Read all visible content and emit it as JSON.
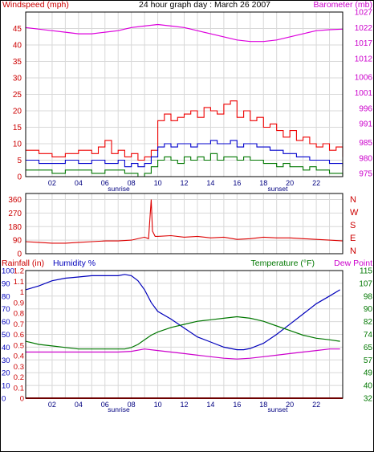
{
  "chart_data": [
    {
      "type": "line",
      "title": "24 hour graph day : March 26 2007",
      "left_axis_label": "Windspeed (mph)",
      "right_axis_label": "Barometer (mb)",
      "y_left_ticks": [
        "0",
        "5",
        "10",
        "15",
        "20",
        "25",
        "30",
        "35",
        "40",
        "45"
      ],
      "y_left_range": [
        0,
        50
      ],
      "y_right_ticks": [
        "975",
        "980",
        "985",
        "991",
        "996",
        "1001",
        "1006",
        "1012",
        "1017",
        "1022",
        "1027"
      ],
      "y_right_range": [
        974,
        1027
      ],
      "x_ticks": [
        "02",
        "04",
        "06",
        "08",
        "10",
        "12",
        "14",
        "16",
        "18",
        "20",
        "22"
      ],
      "x_range": [
        0,
        24
      ],
      "grid": true,
      "annotations": {
        "sunrise": "sunrise",
        "sunset": "sunset",
        "sunrise_hour": 7,
        "sunset_hour": 19
      },
      "colors": {
        "gust": "#ee0000",
        "avg": "#0000cc",
        "min": "#007700",
        "baro": "#dd00dd",
        "left_axis": "#cc0000",
        "right_axis": "#cc00cc"
      },
      "series": [
        {
          "name": "",
          "color": "#ee0000",
          "x": [
            0,
            1,
            2,
            3,
            4,
            5,
            5.5,
            6,
            6.5,
            7,
            7.5,
            8,
            8.5,
            9,
            9.5,
            10,
            10.5,
            11,
            11.5,
            12,
            12.5,
            13,
            13.5,
            14,
            14.5,
            15,
            15.5,
            16,
            16.5,
            17,
            17.5,
            18,
            18.5,
            19,
            19.5,
            20,
            20.5,
            21,
            21.5,
            22,
            22.5,
            23,
            23.5,
            24
          ],
          "y": [
            8,
            7,
            6,
            7,
            8,
            7,
            9,
            11,
            7,
            8,
            6,
            7,
            5,
            6,
            8,
            17,
            19,
            17,
            18,
            19,
            20,
            18,
            21,
            20,
            19,
            22,
            23,
            18,
            20,
            17,
            18,
            15,
            16,
            14,
            12,
            14,
            11,
            12,
            10,
            9,
            10,
            8,
            9,
            6
          ]
        },
        {
          "name": "",
          "color": "#0000cc",
          "x": [
            0,
            1,
            2,
            3,
            4,
            5,
            6,
            7,
            7.5,
            8,
            8.5,
            9,
            9.5,
            10,
            10.5,
            11,
            11.5,
            12,
            12.5,
            13,
            13.5,
            14,
            14.5,
            15,
            15.5,
            16,
            16.5,
            17,
            17.5,
            18,
            18.5,
            19,
            19.5,
            20,
            20.5,
            21,
            21.5,
            22,
            22.5,
            23,
            23.5,
            24
          ],
          "y": [
            5,
            4,
            4,
            5,
            4,
            5,
            4,
            5,
            3,
            4,
            3,
            4,
            6,
            9,
            10,
            9,
            10,
            10,
            9,
            10,
            10,
            11,
            10,
            10,
            11,
            9,
            10,
            10,
            9,
            9,
            8,
            8,
            7,
            7,
            6,
            6,
            5,
            5,
            5,
            4,
            4,
            3
          ]
        },
        {
          "name": "",
          "color": "#007700",
          "x": [
            0,
            1,
            2,
            3,
            4,
            5,
            6,
            7,
            7.5,
            8,
            8.5,
            9,
            9.5,
            10,
            10.5,
            11,
            11.5,
            12,
            12.5,
            13,
            13.5,
            14,
            14.5,
            15,
            15.5,
            16,
            16.5,
            17,
            17.5,
            18,
            18.5,
            19,
            19.5,
            20,
            20.5,
            21,
            21.5,
            22,
            22.5,
            23,
            23.5,
            24
          ],
          "y": [
            2,
            2,
            1,
            2,
            2,
            1,
            2,
            2,
            1,
            1,
            0,
            1,
            3,
            5,
            6,
            5,
            4,
            6,
            5,
            6,
            5,
            7,
            5,
            6,
            6,
            5,
            6,
            5,
            5,
            4,
            4,
            3,
            4,
            3,
            3,
            2,
            3,
            2,
            2,
            1,
            1,
            0
          ]
        },
        {
          "name": "",
          "color": "#dd00dd",
          "x": [
            0,
            1,
            2,
            3,
            4,
            5,
            6,
            7,
            8,
            9,
            10,
            11,
            12,
            13,
            14,
            15,
            16,
            17,
            18,
            19,
            20,
            21,
            22,
            23,
            24
          ],
          "y": [
            1022,
            1021.5,
            1021,
            1020.5,
            1020,
            1020,
            1020.5,
            1021,
            1022,
            1022.5,
            1023,
            1022.5,
            1022,
            1021,
            1020,
            1019,
            1018,
            1017.5,
            1017.5,
            1018,
            1019,
            1020,
            1021,
            1021.3,
            1021.5
          ]
        }
      ]
    },
    {
      "type": "line",
      "y_left_ticks": [
        "360",
        "270",
        "180",
        "90",
        "0"
      ],
      "y_left_range": [
        0,
        400
      ],
      "right_labels": [
        "N",
        "W",
        "S",
        "E",
        "N"
      ],
      "x_range": [
        0,
        24
      ],
      "grid": true,
      "colors": {
        "dir": "#dd0000"
      },
      "series": [
        {
          "name": "",
          "color": "#dd0000",
          "x": [
            0,
            1,
            2,
            3,
            4,
            5,
            6,
            7,
            8,
            9,
            9.3,
            9.5,
            9.6,
            9.8,
            10,
            11,
            12,
            13,
            14,
            15,
            16,
            17,
            18,
            19,
            20,
            21,
            22,
            23,
            24
          ],
          "y": [
            80,
            75,
            70,
            70,
            75,
            80,
            85,
            85,
            90,
            110,
            100,
            360,
            150,
            115,
            115,
            120,
            110,
            115,
            105,
            110,
            95,
            100,
            110,
            105,
            105,
            100,
            95,
            90,
            85
          ]
        }
      ]
    },
    {
      "type": "line",
      "left_axis_label_1": "Rainfall (in)",
      "left_axis_label_2": "Humidity %",
      "right_axis_label_1": "Temperature (°F)",
      "right_axis_label_2": "Dew Point",
      "y_rain_ticks": [
        "1.2",
        "1.1",
        "1",
        "0.9",
        "0.8",
        "0.7",
        "0.6",
        "0.5",
        "0.4",
        "0.3",
        "0.2",
        "0.1",
        "0"
      ],
      "y_hum_ticks": [
        "100",
        "90",
        "80",
        "70",
        "60",
        "50",
        "40",
        "30",
        "20",
        "10",
        "0"
      ],
      "y_left_range": [
        0,
        100
      ],
      "y_right_ticks": [
        "115",
        "107",
        "98",
        "90",
        "82",
        "74",
        "65",
        "57",
        "49",
        "40",
        "32"
      ],
      "y_right_range": [
        32,
        115
      ],
      "x_ticks": [
        "02",
        "04",
        "06",
        "08",
        "10",
        "12",
        "14",
        "16",
        "18",
        "20",
        "22"
      ],
      "x_range": [
        0,
        24
      ],
      "grid": true,
      "annotations": {
        "sunrise": "sunrise",
        "sunset": "sunset",
        "sunrise_hour": 7,
        "sunset_hour": 19
      },
      "colors": {
        "rain": "#dd0000",
        "humidity": "#0000bb",
        "temp": "#007700",
        "dew": "#cc00cc",
        "left_axis_1": "#cc0000",
        "left_axis_2": "#0000bb",
        "right_axis_1": "#007700",
        "right_axis_2": "#cc00cc"
      },
      "series": [
        {
          "name": "",
          "color": "#0000bb",
          "axis": "left",
          "x": [
            0,
            1,
            2,
            3,
            4,
            5,
            6,
            7,
            7.5,
            8,
            8.5,
            9,
            9.5,
            10,
            11,
            12,
            13,
            14,
            15,
            16,
            16.5,
            17,
            18,
            19,
            20,
            21,
            22,
            23,
            23.8
          ],
          "y": [
            85,
            88,
            92,
            94,
            95,
            96,
            96,
            96,
            97,
            96,
            92,
            85,
            75,
            68,
            62,
            55,
            48,
            44,
            40,
            38,
            38,
            39,
            43,
            50,
            58,
            66,
            74,
            80,
            85
          ]
        },
        {
          "name": "",
          "color": "#007700",
          "axis": "right",
          "x": [
            0,
            1,
            2,
            3,
            4,
            5,
            6,
            7,
            7.5,
            8,
            8.5,
            9,
            9.5,
            10,
            11,
            12,
            13,
            14,
            15,
            16,
            17,
            18,
            19,
            20,
            21,
            22,
            23,
            23.8
          ],
          "y": [
            69,
            67,
            66,
            65,
            64,
            64,
            64,
            64,
            64,
            65,
            67,
            70,
            73,
            75,
            78,
            80,
            82,
            83,
            84,
            85,
            84,
            82,
            79,
            76,
            73,
            71,
            70,
            69
          ]
        },
        {
          "name": "",
          "color": "#cc00cc",
          "axis": "right",
          "x": [
            0,
            2,
            4,
            6,
            7,
            8,
            9,
            10,
            11,
            12,
            13,
            14,
            15,
            16,
            17,
            18,
            19,
            20,
            21,
            22,
            23,
            23.8
          ],
          "y": [
            62,
            62,
            62,
            62,
            62,
            62.5,
            64,
            63,
            62,
            61,
            60,
            59,
            58,
            57.5,
            58,
            59,
            60,
            61,
            62,
            63,
            64,
            64
          ]
        },
        {
          "name": "",
          "color": "#dd0000",
          "axis": "rain",
          "x": [
            0,
            24
          ],
          "y": [
            0,
            0
          ]
        }
      ]
    }
  ]
}
